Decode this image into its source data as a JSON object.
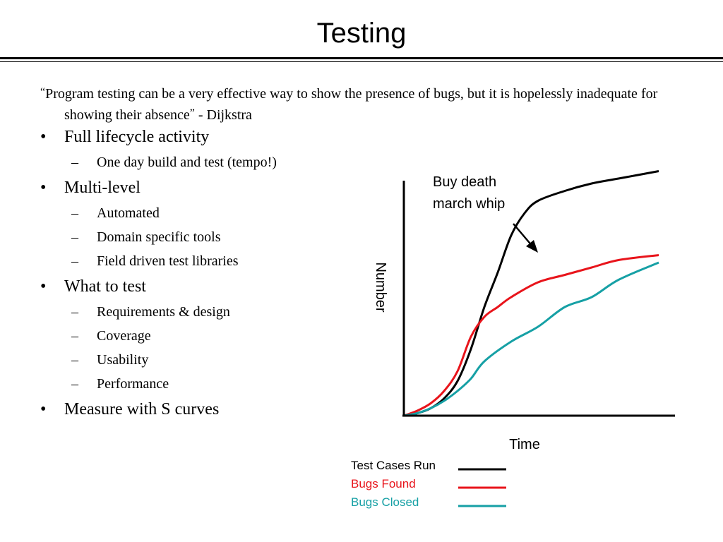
{
  "slide": {
    "title": "Testing",
    "quote": {
      "open_mark": "“",
      "text": "Program testing can be a very effective way to show the presence of bugs, but it is hopelessly inadequate for showing their absence",
      "close_mark": "”",
      "attribution": " - Dijkstra"
    },
    "bullet_glyph": "•",
    "dash_glyph": "–",
    "bullets": [
      {
        "text": "Full lifecycle activity",
        "subs": [
          "One day build and test (tempo!)"
        ]
      },
      {
        "text": "Multi-level",
        "subs": [
          "Automated",
          "Domain specific tools",
          "Field driven test libraries"
        ]
      },
      {
        "text": "What to test",
        "subs": [
          "Requirements & design",
          "Coverage",
          "Usability",
          "Performance"
        ]
      },
      {
        "text": "Measure with S curves",
        "subs": []
      }
    ]
  },
  "chart_data": {
    "type": "line",
    "xlabel": "Time",
    "ylabel": "Number",
    "grid": false,
    "legend_position": "bottom-center",
    "annotation": {
      "line1": "Buy death",
      "line2": "march whip"
    },
    "series": [
      {
        "name": "Test Cases Run",
        "color": "#000000",
        "points": [
          [
            0,
            0
          ],
          [
            5,
            1
          ],
          [
            10,
            3
          ],
          [
            15,
            7
          ],
          [
            20,
            14
          ],
          [
            25,
            27
          ],
          [
            30,
            44
          ],
          [
            35,
            58
          ],
          [
            40,
            73
          ],
          [
            45,
            82
          ],
          [
            50,
            87
          ],
          [
            60,
            91
          ],
          [
            70,
            94
          ],
          [
            80,
            96
          ],
          [
            95,
            99
          ]
        ]
      },
      {
        "name": "Bugs Found",
        "color": "#e8141b",
        "points": [
          [
            0,
            0
          ],
          [
            5,
            2
          ],
          [
            10,
            5
          ],
          [
            15,
            10
          ],
          [
            20,
            18
          ],
          [
            25,
            32
          ],
          [
            30,
            40
          ],
          [
            35,
            44
          ],
          [
            40,
            48
          ],
          [
            50,
            54
          ],
          [
            60,
            57
          ],
          [
            70,
            60
          ],
          [
            80,
            63
          ],
          [
            95,
            65
          ]
        ]
      },
      {
        "name": "Bugs Closed",
        "color": "#16a0a5",
        "points": [
          [
            0,
            0
          ],
          [
            5,
            1
          ],
          [
            10,
            3
          ],
          [
            15,
            6
          ],
          [
            20,
            10
          ],
          [
            25,
            15
          ],
          [
            30,
            22
          ],
          [
            40,
            30
          ],
          [
            50,
            36
          ],
          [
            60,
            44
          ],
          [
            70,
            48
          ],
          [
            80,
            55
          ],
          [
            95,
            62
          ]
        ]
      }
    ]
  }
}
